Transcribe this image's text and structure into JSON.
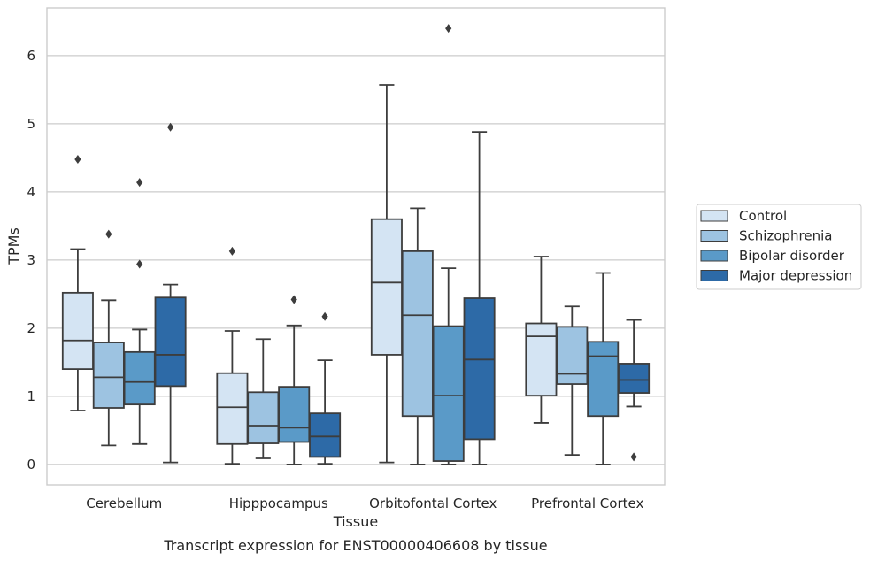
{
  "chart_data": {
    "type": "box",
    "title": "",
    "caption": "Transcript expression for ENST00000406608 by tissue",
    "xlabel": "Tissue",
    "ylabel": "TPMs",
    "ylim": [
      -0.3,
      6.7
    ],
    "yticks": [
      0,
      1,
      2,
      3,
      4,
      5,
      6
    ],
    "grid": true,
    "legend_position": "right",
    "categories": [
      "Cerebellum",
      "Hipppocampus",
      "Orbitofontal Cortex",
      "Prefrontal Cortex"
    ],
    "series": [
      {
        "name": "Control",
        "color": "#d4e4f3",
        "boxes": [
          {
            "whisker_low": 0.79,
            "q1": 1.4,
            "median": 1.82,
            "q3": 2.52,
            "whisker_high": 3.16,
            "outliers": [
              4.48
            ]
          },
          {
            "whisker_low": 0.01,
            "q1": 0.3,
            "median": 0.84,
            "q3": 1.34,
            "whisker_high": 1.96,
            "outliers": [
              3.13
            ]
          },
          {
            "whisker_low": 0.03,
            "q1": 1.61,
            "median": 2.67,
            "q3": 3.6,
            "whisker_high": 5.57,
            "outliers": []
          },
          {
            "whisker_low": 0.61,
            "q1": 1.01,
            "median": 1.88,
            "q3": 2.07,
            "whisker_high": 3.05,
            "outliers": []
          }
        ]
      },
      {
        "name": "Schizophrenia",
        "color": "#9dc3e1",
        "boxes": [
          {
            "whisker_low": 0.28,
            "q1": 0.83,
            "median": 1.28,
            "q3": 1.79,
            "whisker_high": 2.41,
            "outliers": [
              3.38
            ]
          },
          {
            "whisker_low": 0.09,
            "q1": 0.31,
            "median": 0.57,
            "q3": 1.06,
            "whisker_high": 1.84,
            "outliers": []
          },
          {
            "whisker_low": 0.0,
            "q1": 0.71,
            "median": 2.19,
            "q3": 3.13,
            "whisker_high": 3.76,
            "outliers": []
          },
          {
            "whisker_low": 0.14,
            "q1": 1.18,
            "median": 1.33,
            "q3": 2.02,
            "whisker_high": 2.32,
            "outliers": []
          }
        ]
      },
      {
        "name": "Bipolar disorder",
        "color": "#5a9ac8",
        "boxes": [
          {
            "whisker_low": 0.3,
            "q1": 0.88,
            "median": 1.21,
            "q3": 1.65,
            "whisker_high": 1.98,
            "outliers": [
              4.14,
              2.94
            ]
          },
          {
            "whisker_low": 0.0,
            "q1": 0.33,
            "median": 0.54,
            "q3": 1.14,
            "whisker_high": 2.04,
            "outliers": [
              2.42
            ]
          },
          {
            "whisker_low": 0.0,
            "q1": 0.05,
            "median": 1.01,
            "q3": 2.03,
            "whisker_high": 2.88,
            "outliers": [
              6.4
            ]
          },
          {
            "whisker_low": 0.0,
            "q1": 0.71,
            "median": 1.59,
            "q3": 1.8,
            "whisker_high": 2.81,
            "outliers": []
          }
        ]
      },
      {
        "name": "Major depression",
        "color": "#2d6aa7",
        "boxes": [
          {
            "whisker_low": 0.03,
            "q1": 1.15,
            "median": 1.61,
            "q3": 2.45,
            "whisker_high": 2.64,
            "outliers": [
              4.95
            ]
          },
          {
            "whisker_low": 0.01,
            "q1": 0.11,
            "median": 0.41,
            "q3": 0.75,
            "whisker_high": 1.53,
            "outliers": [
              2.17
            ]
          },
          {
            "whisker_low": 0.0,
            "q1": 0.37,
            "median": 1.54,
            "q3": 2.44,
            "whisker_high": 4.88,
            "outliers": []
          },
          {
            "whisker_low": 0.85,
            "q1": 1.05,
            "median": 1.24,
            "q3": 1.48,
            "whisker_high": 2.12,
            "outliers": [
              0.11
            ]
          }
        ]
      }
    ]
  }
}
